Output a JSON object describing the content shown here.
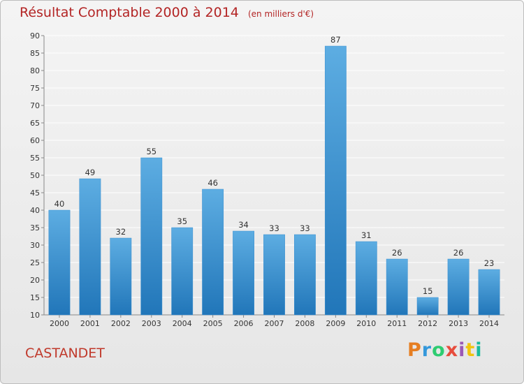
{
  "header": {
    "title": "Résultat Comptable 2000 à 2014",
    "subtitle": "(en milliers d'€)"
  },
  "footer": {
    "city": "CASTANDET",
    "logo_text": "Proxiti",
    "logo_colors": [
      "#e67e22",
      "#3498db",
      "#2ecc71",
      "#e74c3c",
      "#9b59b6",
      "#f1c40f",
      "#1abc9c"
    ]
  },
  "colors": {
    "bar_top": "#5dade2",
    "bar_bottom": "#2176b9",
    "grid": "#ffffff",
    "text": "#333333",
    "accent": "#b32424"
  },
  "chart_data": {
    "type": "bar",
    "categories": [
      "2000",
      "2001",
      "2002",
      "2003",
      "2004",
      "2005",
      "2006",
      "2007",
      "2008",
      "2009",
      "2010",
      "2011",
      "2012",
      "2013",
      "2014"
    ],
    "values": [
      40,
      49,
      32,
      55,
      35,
      46,
      34,
      33,
      33,
      87,
      31,
      26,
      15,
      26,
      23
    ],
    "data_labels": [
      "40",
      "49",
      "32",
      "55",
      "35",
      "46",
      "34",
      "33",
      "33",
      "87",
      "31",
      "26",
      "15",
      "26",
      "23"
    ],
    "title": "Résultat Comptable 2000 à 2014",
    "subtitle": "(en milliers d'€)",
    "ylim": [
      10,
      90
    ],
    "yticks": [
      10,
      15,
      20,
      25,
      30,
      35,
      40,
      45,
      50,
      55,
      60,
      65,
      70,
      75,
      80,
      85,
      90
    ],
    "grid": true
  }
}
